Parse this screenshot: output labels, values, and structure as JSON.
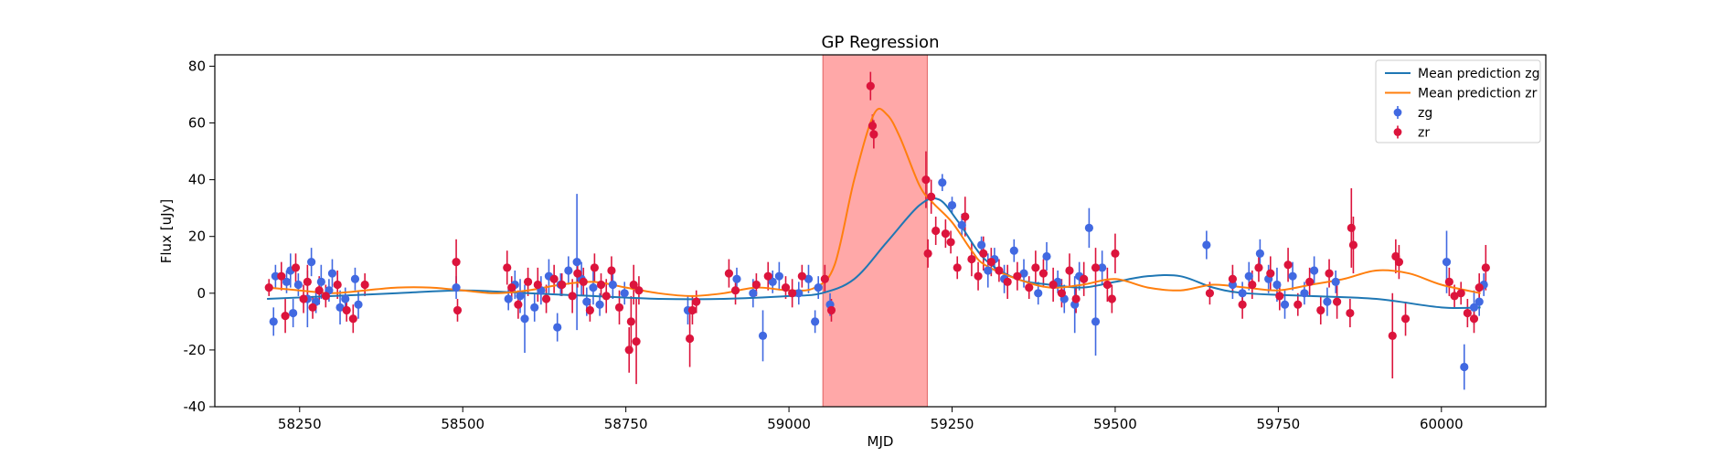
{
  "chart_data": {
    "type": "scatter",
    "title": "GP Regression",
    "xlabel": "MJD",
    "ylabel": "Flux [uJy]",
    "xlim": [
      58120,
      60160
    ],
    "ylim": [
      -40,
      84
    ],
    "xticks": [
      58250,
      58500,
      58750,
      59000,
      59250,
      59500,
      59750,
      60000
    ],
    "yticks": [
      -40,
      -20,
      0,
      20,
      40,
      60,
      80
    ],
    "highlight_span": {
      "x0": 59052,
      "x1": 59212,
      "color": "#ff9999"
    },
    "colors": {
      "zg_line": "#1f77b4",
      "zr_line": "#ff7f0e",
      "zg_points": "#4169e1",
      "zr_points": "#dc143c"
    },
    "legend": {
      "location": "top-right",
      "entries": [
        "Mean prediction zg",
        "Mean prediction zr",
        "zg",
        "zr"
      ]
    },
    "lines": [
      {
        "name": "Mean prediction zg",
        "x": [
          58200,
          58300,
          58400,
          58500,
          58600,
          58700,
          58800,
          58900,
          59000,
          59050,
          59100,
          59150,
          59200,
          59230,
          59260,
          59300,
          59350,
          59400,
          59450,
          59500,
          59550,
          59600,
          59650,
          59700,
          59800,
          59900,
          60000,
          60060
        ],
        "y": [
          -2,
          -1,
          0,
          1,
          0,
          -1,
          -2,
          -2,
          -1,
          0,
          5,
          18,
          31,
          33,
          25,
          12,
          5,
          3,
          2,
          4,
          6,
          6,
          2,
          0,
          -1,
          -2,
          -5,
          -5
        ]
      },
      {
        "name": "Mean prediction zr",
        "x": [
          58200,
          58250,
          58300,
          58350,
          58400,
          58450,
          58500,
          58550,
          58600,
          58650,
          58700,
          58750,
          58800,
          58850,
          58900,
          58950,
          59000,
          59040,
          59070,
          59100,
          59130,
          59150,
          59170,
          59200,
          59220,
          59250,
          59280,
          59300,
          59350,
          59400,
          59450,
          59500,
          59550,
          59600,
          59650,
          59700,
          59750,
          59800,
          59850,
          59900,
          59950,
          60000,
          60060
        ],
        "y": [
          2,
          1,
          0,
          1,
          2,
          2,
          1,
          0,
          1,
          3,
          4,
          2,
          0,
          -1,
          0,
          2,
          1,
          2,
          10,
          40,
          63,
          63,
          55,
          38,
          32,
          25,
          15,
          10,
          5,
          2,
          3,
          5,
          2,
          1,
          3,
          2,
          1,
          3,
          5,
          8,
          7,
          3,
          0
        ]
      }
    ],
    "series": [
      {
        "name": "zg",
        "x": [
          58210,
          58213,
          58230,
          58236,
          58240,
          58248,
          58262,
          58268,
          58275,
          58283,
          58295,
          58300,
          58312,
          58320,
          58335,
          58340,
          58490,
          58570,
          58580,
          58588,
          58595,
          58610,
          58620,
          58632,
          58645,
          58650,
          58662,
          58675,
          58682,
          58690,
          58700,
          58710,
          58730,
          58748,
          58845,
          58920,
          58945,
          58960,
          58975,
          58985,
          59015,
          59030,
          59040,
          59045,
          59063,
          59235,
          59250,
          59265,
          59295,
          59305,
          59315,
          59330,
          59345,
          59360,
          59382,
          59395,
          59412,
          59422,
          59438,
          59445,
          59460,
          59470,
          59480,
          59640,
          59680,
          59695,
          59705,
          59722,
          59735,
          59748,
          59760,
          59772,
          59790,
          59805,
          59825,
          59838,
          60008,
          60035,
          60050,
          60058,
          60065
        ],
        "y": [
          -10,
          6,
          4,
          8,
          -7,
          3,
          -2,
          11,
          -3,
          4,
          1,
          7,
          -5,
          -2,
          5,
          -4,
          2,
          -2,
          3,
          -1,
          -9,
          -5,
          1,
          6,
          -12,
          3,
          8,
          11,
          5,
          -3,
          2,
          -4,
          3,
          0,
          -6,
          5,
          0,
          -15,
          4,
          6,
          0,
          5,
          -10,
          2,
          -4,
          39,
          31,
          24,
          17,
          8,
          12,
          5,
          15,
          7,
          0,
          13,
          4,
          -2,
          -4,
          6,
          23,
          -10,
          9,
          17,
          3,
          0,
          6,
          14,
          5,
          3,
          -4,
          6,
          0,
          8,
          -3,
          4,
          11,
          -26,
          -5,
          -3,
          3
        ],
        "err": [
          5,
          4,
          4,
          6,
          5,
          4,
          10,
          5,
          4,
          6,
          4,
          5,
          6,
          4,
          4,
          5,
          4,
          4,
          5,
          6,
          12,
          5,
          5,
          6,
          5,
          4,
          5,
          24,
          6,
          5,
          6,
          4,
          5,
          4,
          5,
          4,
          5,
          9,
          4,
          5,
          4,
          5,
          4,
          4,
          4,
          3,
          3,
          4,
          3,
          6,
          4,
          5,
          4,
          5,
          4,
          5,
          4,
          5,
          10,
          5,
          7,
          12,
          6,
          5,
          5,
          4,
          5,
          5,
          5,
          6,
          5,
          5,
          4,
          5,
          5,
          4,
          11,
          8,
          6,
          5,
          4
        ]
      },
      {
        "name": "zr",
        "x": [
          58203,
          58222,
          58228,
          58244,
          58256,
          58262,
          58270,
          58280,
          58290,
          58308,
          58322,
          58332,
          58350,
          58490,
          58492,
          58568,
          58575,
          58585,
          58600,
          58615,
          58628,
          58640,
          58652,
          58668,
          58676,
          58685,
          58695,
          58702,
          58712,
          58720,
          58728,
          58740,
          58755,
          58758,
          58762,
          58766,
          58770,
          58848,
          58852,
          58858,
          58908,
          58918,
          58950,
          58968,
          58995,
          59005,
          59020,
          59055,
          59065,
          59125,
          59128,
          59130,
          59210,
          59213,
          59218,
          59225,
          59240,
          59248,
          59258,
          59270,
          59280,
          59290,
          59298,
          59310,
          59322,
          59335,
          59350,
          59368,
          59378,
          59390,
          59405,
          59418,
          59430,
          59440,
          59452,
          59470,
          59488,
          59495,
          59500,
          59645,
          59680,
          59695,
          59710,
          59720,
          59738,
          59752,
          59765,
          59780,
          59798,
          59815,
          59828,
          59840,
          59860,
          59862,
          59865,
          59925,
          59930,
          59935,
          59945,
          60012,
          60020,
          60030,
          60040,
          60050,
          60058,
          60068
        ],
        "y": [
          2,
          6,
          -8,
          9,
          -2,
          4,
          -5,
          1,
          -1,
          3,
          -6,
          -9,
          3,
          11,
          -6,
          9,
          2,
          -4,
          4,
          3,
          -2,
          5,
          3,
          -1,
          7,
          4,
          -6,
          9,
          3,
          -1,
          8,
          -5,
          -20,
          -10,
          3,
          -17,
          1,
          -16,
          -6,
          -3,
          7,
          1,
          3,
          6,
          2,
          0,
          6,
          5,
          -6,
          73,
          59,
          56,
          40,
          14,
          34,
          22,
          21,
          18,
          9,
          27,
          12,
          6,
          14,
          11,
          8,
          4,
          6,
          2,
          9,
          7,
          3,
          0,
          8,
          -2,
          5,
          9,
          3,
          -2,
          14,
          0,
          5,
          -4,
          3,
          9,
          7,
          -1,
          10,
          -4,
          4,
          -6,
          7,
          -3,
          -7,
          23,
          17,
          -15,
          13,
          11,
          -9,
          4,
          -1,
          0,
          -7,
          -9,
          2,
          9
        ],
        "err": [
          3,
          5,
          6,
          5,
          5,
          6,
          4,
          5,
          4,
          5,
          4,
          5,
          4,
          8,
          4,
          6,
          4,
          5,
          5,
          6,
          5,
          5,
          4,
          6,
          5,
          5,
          4,
          5,
          4,
          6,
          5,
          6,
          8,
          9,
          7,
          15,
          5,
          10,
          5,
          4,
          5,
          5,
          4,
          5,
          4,
          5,
          4,
          5,
          4,
          5,
          4,
          5,
          10,
          5,
          6,
          5,
          5,
          4,
          4,
          7,
          6,
          5,
          6,
          5,
          4,
          6,
          5,
          4,
          6,
          5,
          6,
          5,
          6,
          5,
          6,
          7,
          6,
          5,
          7,
          4,
          5,
          5,
          5,
          5,
          6,
          5,
          6,
          4,
          5,
          5,
          5,
          6,
          5,
          14,
          10,
          15,
          6,
          6,
          6,
          5,
          4,
          4,
          5,
          5,
          5,
          8
        ]
      }
    ]
  }
}
